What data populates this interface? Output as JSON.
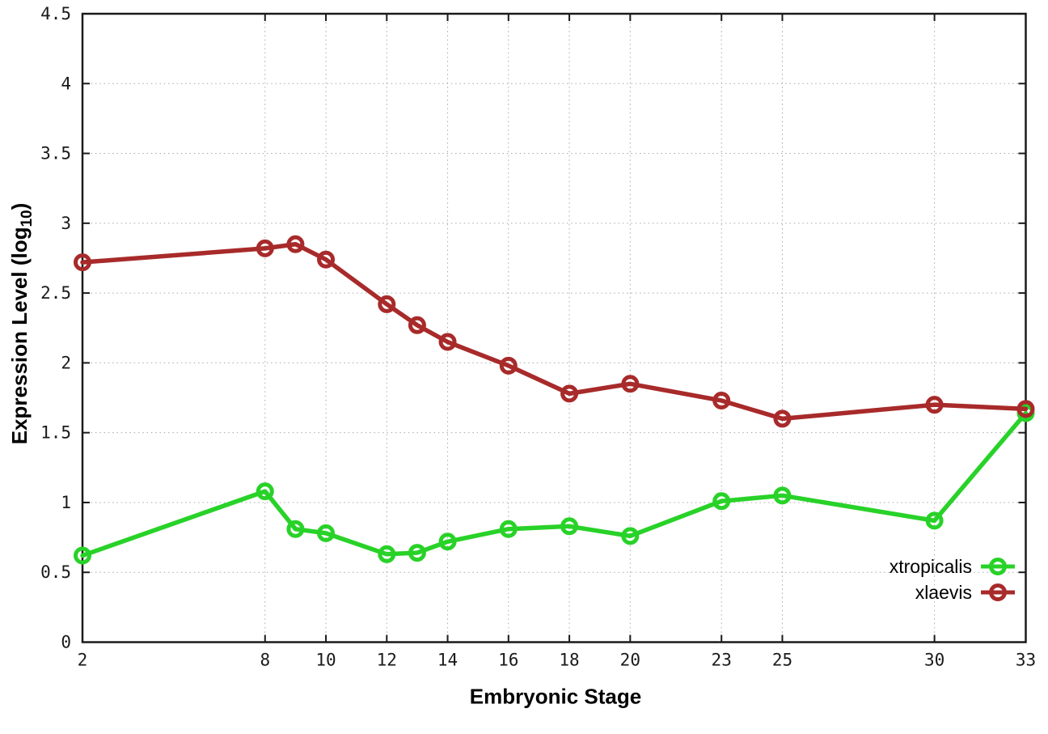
{
  "figure": {
    "x_axis_label": "Embryonic Stage",
    "y_axis_label_prefix": "Expression Level (log",
    "y_axis_label_sub": "10",
    "y_axis_label_suffix": ")"
  },
  "legend": {
    "position": "inside-bottom-right",
    "items": [
      {
        "label": "xtropicalis",
        "color": "#28d228"
      },
      {
        "label": "xlaevis",
        "color": "#a82a2a"
      }
    ]
  },
  "style": {
    "background": "#ffffff",
    "axis_color": "#1a1a1a",
    "grid_color": "#a8a8a8",
    "series_green": "#28d228",
    "series_red": "#a82a2a"
  },
  "chart_data": {
    "type": "line",
    "title": "",
    "xlabel": "Embryonic Stage",
    "ylabel": "Expression Level (log10)",
    "x": [
      2,
      8,
      9,
      10,
      12,
      13,
      14,
      16,
      18,
      20,
      23,
      25,
      30,
      33
    ],
    "series": [
      {
        "name": "xtropicalis",
        "color": "#28d228",
        "values": [
          0.62,
          1.08,
          0.81,
          0.78,
          0.63,
          0.64,
          0.72,
          0.81,
          0.83,
          0.76,
          1.01,
          1.05,
          0.87,
          1.64
        ]
      },
      {
        "name": "xlaevis",
        "color": "#a82a2a",
        "values": [
          2.72,
          2.82,
          2.85,
          2.74,
          2.42,
          2.27,
          2.15,
          1.98,
          1.78,
          1.85,
          1.73,
          1.6,
          1.7,
          1.67
        ]
      }
    ],
    "xlim": [
      2,
      33
    ],
    "ylim": [
      0,
      4.5
    ],
    "x_ticks": [
      2,
      8,
      10,
      12,
      14,
      16,
      18,
      20,
      23,
      25,
      30,
      33
    ],
    "y_ticks": [
      0,
      0.5,
      1,
      1.5,
      2,
      2.5,
      3,
      3.5,
      4,
      4.5
    ],
    "grid": true,
    "marker": "open-circle",
    "legend_position": "bottom-right-inside"
  }
}
